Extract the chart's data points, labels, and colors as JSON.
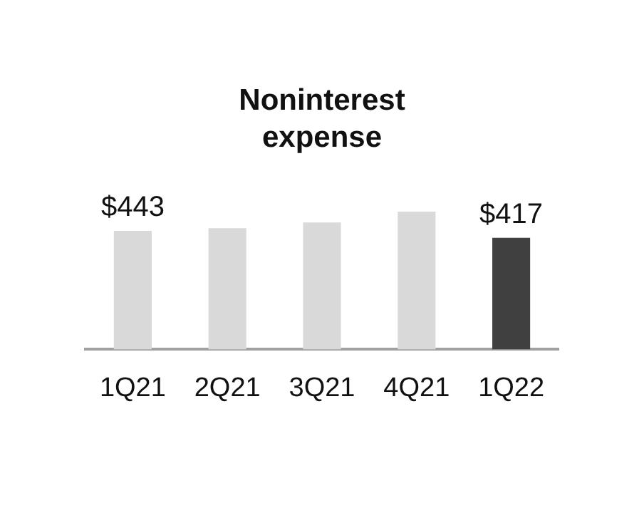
{
  "chart_data": {
    "type": "bar",
    "title": "Noninterest expense",
    "categories": [
      "1Q21",
      "2Q21",
      "3Q21",
      "4Q21",
      "1Q22"
    ],
    "values": [
      443,
      453,
      474,
      515,
      417
    ],
    "colors": [
      "#d9d9d9",
      "#d9d9d9",
      "#d9d9d9",
      "#d9d9d9",
      "#404040"
    ],
    "value_labels": [
      "$443",
      null,
      null,
      null,
      "$417"
    ]
  }
}
